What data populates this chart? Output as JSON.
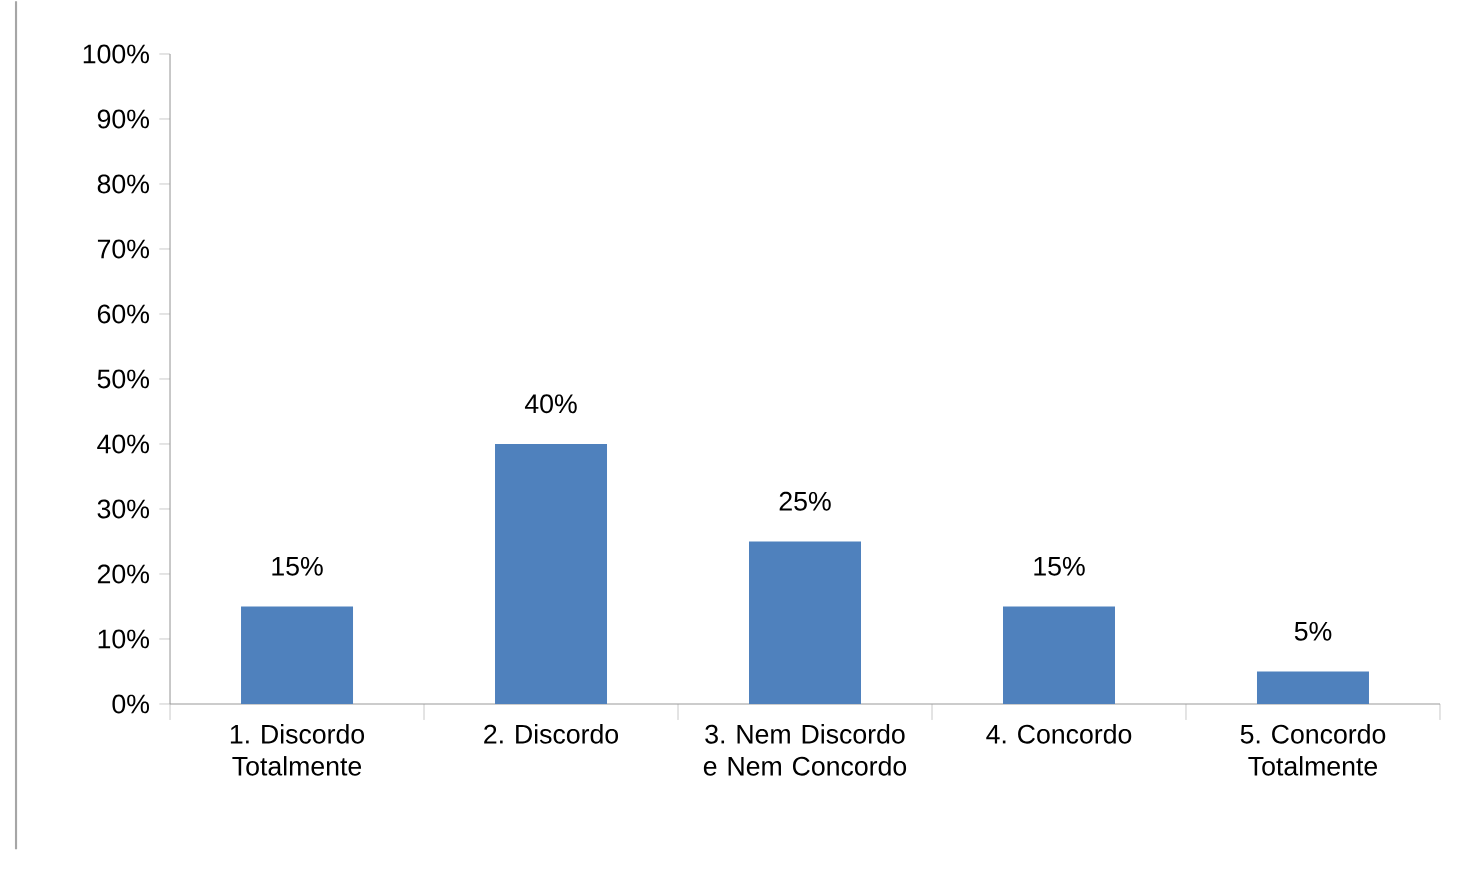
{
  "chart_data": {
    "type": "bar",
    "categories": [
      "1. Discordo Totalmente",
      "2. Discordo",
      "3. Nem Discordo e Nem Concordo",
      "4. Concordo",
      "5. Concordo Totalmente"
    ],
    "values": [
      15,
      40,
      25,
      15,
      5
    ],
    "value_labels": [
      "15%",
      "40%",
      "25%",
      "15%",
      "5%"
    ],
    "color": "#4f81bd",
    "ylim": [
      0,
      100
    ],
    "yticks": [
      {
        "value": 0,
        "label": "0%"
      },
      {
        "value": 10,
        "label": "10%"
      },
      {
        "value": 20,
        "label": "20%"
      },
      {
        "value": 30,
        "label": "30%"
      },
      {
        "value": 40,
        "label": "40%"
      },
      {
        "value": 50,
        "label": "50%"
      },
      {
        "value": 60,
        "label": "60%"
      },
      {
        "value": 70,
        "label": "70%"
      },
      {
        "value": 80,
        "label": "80%"
      },
      {
        "value": 90,
        "label": "90%"
      },
      {
        "value": 100,
        "label": "100%"
      }
    ],
    "grid": false
  }
}
